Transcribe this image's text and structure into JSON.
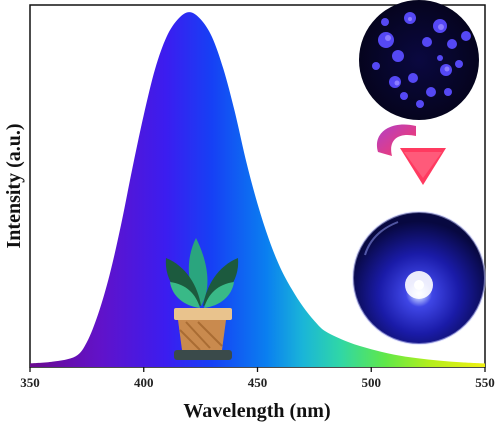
{
  "chart_data": {
    "type": "area",
    "title": "",
    "xlabel": "Wavelength (nm)",
    "ylabel": "Intensity (a.u.)",
    "xlim": [
      350,
      550
    ],
    "ylim": [
      0,
      1.02
    ],
    "x_ticks": [
      "350",
      "400",
      "450",
      "500",
      "550"
    ],
    "fill": "spectral gradient (violet to yellow)",
    "series": [
      {
        "x": [
          350,
          360,
          370,
          375,
          380,
          385,
          390,
          395,
          400,
          405,
          410,
          415,
          420,
          425,
          430,
          435,
          440,
          445,
          450,
          455,
          460,
          465,
          470,
          475,
          480,
          490,
          500,
          510,
          520,
          530,
          540,
          550
        ],
        "y": [
          0.01,
          0.015,
          0.03,
          0.07,
          0.15,
          0.26,
          0.4,
          0.56,
          0.71,
          0.84,
          0.93,
          0.98,
          1.0,
          0.98,
          0.93,
          0.84,
          0.72,
          0.58,
          0.46,
          0.36,
          0.28,
          0.22,
          0.17,
          0.13,
          0.1,
          0.07,
          0.05,
          0.035,
          0.025,
          0.018,
          0.013,
          0.01
        ]
      }
    ]
  },
  "insets": {
    "top_image": "phosphor-powder-photo",
    "bottom_image": "blue-led-photo",
    "arrow": "curved-arrow-down",
    "plant": "potted-plant-icon"
  }
}
